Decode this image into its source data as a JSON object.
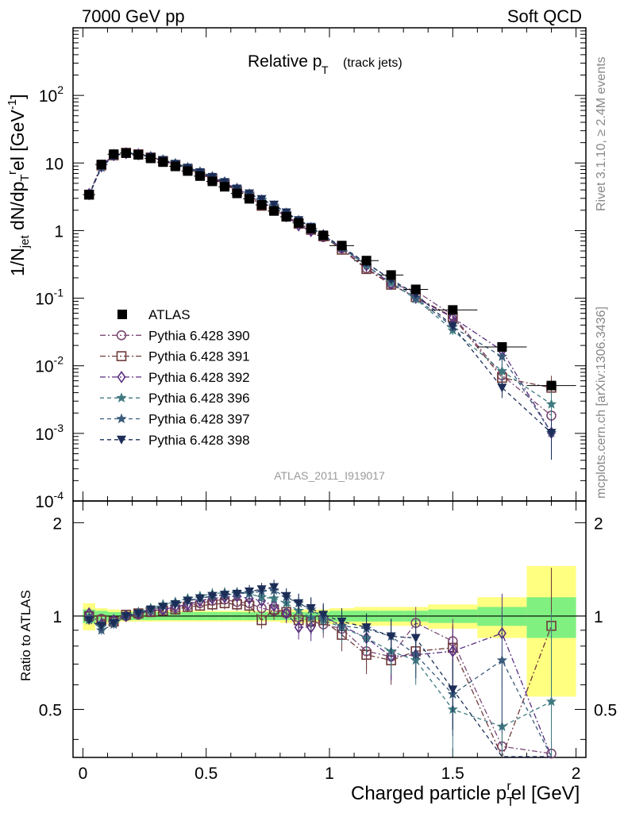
{
  "header": {
    "left": "7000 GeV pp",
    "right": "Soft QCD"
  },
  "side_labels": {
    "rivet": "Rivet 3.1.10, ≥ 2.4M events",
    "mcplots": "mcplots.cern.ch [arXiv:1306.3436]"
  },
  "watermark": "ATLAS_2011_I919017",
  "chart_data": {
    "type": "line",
    "title": "Relative p_T (track jets)",
    "title_main": "Relative p",
    "title_sub": "T",
    "title_small": "(track jets)",
    "xlabel": "Charged particle p_T^rel [GeV]",
    "xlabel_main": "Charged particle p",
    "xlabel_sub": "T",
    "xlabel_sup": "r",
    "xlabel_tail": "el [GeV]",
    "ylabel": "1/N_jet dN/dp_T^rel [GeV^-1]",
    "ylabel_parts": {
      "a": "1/N",
      "b": "jet",
      "c": " dN/dp",
      "d": "T",
      "e": "r",
      "f": "el [GeV",
      "g": "-1",
      "h": "]"
    },
    "ratio_ylabel": "Ratio to ATLAS",
    "xlim": [
      -0.04,
      2.04
    ],
    "ylim": [
      0.0001,
      1000
    ],
    "ratio_ylim": [
      0.35,
      2.35
    ],
    "x_ticks": [
      "0",
      "0.5",
      "1",
      "1.5",
      "2"
    ],
    "y_ticks": [
      {
        "b": "10",
        "e": "-4"
      },
      {
        "b": "10",
        "e": "-3"
      },
      {
        "b": "10",
        "e": "-2"
      },
      {
        "b": "10",
        "e": "-1"
      },
      {
        "b": "1",
        "e": ""
      },
      {
        "b": "10",
        "e": ""
      },
      {
        "b": "10",
        "e": "2"
      }
    ],
    "ratio_ticks": [
      "0.5",
      "1",
      "2"
    ],
    "x": [
      0.025,
      0.075,
      0.125,
      0.175,
      0.225,
      0.275,
      0.325,
      0.375,
      0.425,
      0.475,
      0.525,
      0.575,
      0.625,
      0.675,
      0.725,
      0.775,
      0.825,
      0.875,
      0.925,
      0.975,
      1.05,
      1.15,
      1.25,
      1.35,
      1.5,
      1.7,
      1.9
    ],
    "xerr": [
      0.025,
      0.025,
      0.025,
      0.025,
      0.025,
      0.025,
      0.025,
      0.025,
      0.025,
      0.025,
      0.025,
      0.025,
      0.025,
      0.025,
      0.025,
      0.025,
      0.025,
      0.025,
      0.025,
      0.025,
      0.05,
      0.05,
      0.05,
      0.05,
      0.1,
      0.1,
      0.1
    ],
    "data": {
      "name": "ATLAS",
      "values": [
        3.4,
        9.5,
        13.5,
        14.0,
        13.2,
        11.7,
        10.3,
        8.9,
        7.6,
        6.4,
        5.35,
        4.45,
        3.55,
        2.95,
        2.4,
        1.95,
        1.6,
        1.3,
        1.07,
        0.85,
        0.6,
        0.36,
        0.22,
        0.135,
        0.067,
        0.019,
        0.0051
      ],
      "band_inner": [
        0.05,
        0.04,
        0.03,
        0.03,
        0.03,
        0.03,
        0.03,
        0.03,
        0.03,
        0.03,
        0.03,
        0.03,
        0.03,
        0.03,
        0.03,
        0.03,
        0.03,
        0.03,
        0.03,
        0.03,
        0.04,
        0.04,
        0.04,
        0.04,
        0.05,
        0.07,
        0.15
      ],
      "band_outer": [
        0.1,
        0.06,
        0.05,
        0.04,
        0.04,
        0.04,
        0.04,
        0.04,
        0.04,
        0.04,
        0.04,
        0.04,
        0.04,
        0.04,
        0.04,
        0.04,
        0.05,
        0.05,
        0.05,
        0.05,
        0.06,
        0.07,
        0.07,
        0.07,
        0.09,
        0.15,
        0.45
      ]
    },
    "series": [
      {
        "name": "Pythia 6.428 390",
        "color": "#7b4a75",
        "marker": "circle",
        "dash": "7,3,2,3",
        "ratio": [
          1.0,
          0.98,
          0.96,
          1.0,
          1.01,
          1.03,
          1.05,
          1.06,
          1.08,
          1.1,
          1.12,
          1.13,
          1.11,
          1.1,
          1.06,
          1.04,
          1.02,
          0.99,
          0.96,
          0.94,
          0.91,
          0.77,
          0.74,
          0.95,
          0.83,
          0.38,
          0.36
        ],
        "err": [
          0.03,
          0.03,
          0.03,
          0.03,
          0.03,
          0.03,
          0.03,
          0.04,
          0.04,
          0.04,
          0.05,
          0.05,
          0.05,
          0.06,
          0.06,
          0.07,
          0.07,
          0.08,
          0.09,
          0.09,
          0.1,
          0.1,
          0.12,
          0.12,
          0.15,
          0.3,
          0.6
        ]
      },
      {
        "name": "Pythia 6.428 391",
        "color": "#6e3a3a",
        "marker": "square",
        "dash": "7,3,2,3",
        "ratio": [
          1.0,
          0.97,
          0.96,
          1.01,
          1.02,
          1.03,
          1.04,
          1.05,
          1.07,
          1.08,
          1.09,
          1.1,
          1.09,
          1.08,
          0.97,
          1.05,
          1.03,
          0.97,
          0.96,
          0.97,
          0.87,
          0.75,
          0.72,
          0.77,
          0.79,
          0.35,
          0.93
        ],
        "err": [
          0.03,
          0.03,
          0.03,
          0.03,
          0.03,
          0.03,
          0.03,
          0.04,
          0.04,
          0.04,
          0.05,
          0.05,
          0.05,
          0.06,
          0.06,
          0.07,
          0.07,
          0.08,
          0.09,
          0.09,
          0.1,
          0.1,
          0.12,
          0.12,
          0.15,
          0.3,
          0.5
        ]
      },
      {
        "name": "Pythia 6.428 392",
        "color": "#5a2f82",
        "marker": "diamond",
        "dash": "7,3,2,3",
        "ratio": [
          1.02,
          0.94,
          0.97,
          1.0,
          1.02,
          1.04,
          1.05,
          1.07,
          1.09,
          1.12,
          1.14,
          1.15,
          1.16,
          1.14,
          1.12,
          1.08,
          1.02,
          0.92,
          0.92,
          1.0,
          0.93,
          0.85,
          0.74,
          0.75,
          0.77,
          0.88,
          0.2
        ],
        "err": [
          0.03,
          0.03,
          0.03,
          0.03,
          0.03,
          0.03,
          0.03,
          0.04,
          0.04,
          0.04,
          0.05,
          0.05,
          0.05,
          0.06,
          0.06,
          0.07,
          0.07,
          0.08,
          0.09,
          0.09,
          0.1,
          0.1,
          0.12,
          0.12,
          0.15,
          0.3,
          0.6
        ]
      },
      {
        "name": "Pythia 6.428 396",
        "color": "#3f7a80",
        "marker": "star",
        "dash": "5,4",
        "ratio": [
          0.97,
          0.92,
          0.95,
          1.0,
          1.03,
          1.06,
          1.09,
          1.11,
          1.14,
          1.16,
          1.18,
          1.19,
          1.19,
          1.18,
          1.15,
          1.14,
          1.1,
          1.04,
          0.99,
          0.97,
          0.92,
          0.85,
          0.77,
          0.72,
          0.5,
          0.44,
          0.53
        ],
        "err": [
          0.03,
          0.03,
          0.03,
          0.03,
          0.03,
          0.03,
          0.03,
          0.04,
          0.04,
          0.04,
          0.05,
          0.05,
          0.05,
          0.06,
          0.06,
          0.07,
          0.07,
          0.08,
          0.09,
          0.09,
          0.1,
          0.1,
          0.12,
          0.12,
          0.15,
          0.3,
          0.5
        ]
      },
      {
        "name": "Pythia 6.428 397",
        "color": "#3a5a7a",
        "marker": "star",
        "dash": "5,4",
        "ratio": [
          0.99,
          0.9,
          0.94,
          1.0,
          1.02,
          1.05,
          1.08,
          1.1,
          1.12,
          1.14,
          1.16,
          1.17,
          1.18,
          1.19,
          1.2,
          1.21,
          1.15,
          1.1,
          1.05,
          0.99,
          0.93,
          0.91,
          0.86,
          0.75,
          0.56,
          0.72,
          0.2
        ],
        "err": [
          0.03,
          0.03,
          0.03,
          0.03,
          0.03,
          0.03,
          0.03,
          0.04,
          0.04,
          0.04,
          0.05,
          0.05,
          0.05,
          0.06,
          0.06,
          0.07,
          0.07,
          0.08,
          0.09,
          0.09,
          0.1,
          0.1,
          0.12,
          0.12,
          0.15,
          0.3,
          0.6
        ]
      },
      {
        "name": "Pythia 6.428 398",
        "color": "#1c2e58",
        "marker": "tridown",
        "dash": "5,4",
        "ratio": [
          0.97,
          0.93,
          0.95,
          1.0,
          1.02,
          1.05,
          1.07,
          1.09,
          1.12,
          1.14,
          1.16,
          1.17,
          1.18,
          1.2,
          1.22,
          1.24,
          1.16,
          1.1,
          1.06,
          1.01,
          0.96,
          0.92,
          0.86,
          0.85,
          0.58,
          0.25,
          0.2
        ],
        "err": [
          0.03,
          0.03,
          0.03,
          0.03,
          0.03,
          0.03,
          0.03,
          0.04,
          0.04,
          0.04,
          0.05,
          0.05,
          0.05,
          0.06,
          0.06,
          0.07,
          0.07,
          0.08,
          0.09,
          0.09,
          0.1,
          0.1,
          0.12,
          0.12,
          0.15,
          0.3,
          0.6
        ]
      }
    ],
    "legend_position": "middle-left"
  }
}
